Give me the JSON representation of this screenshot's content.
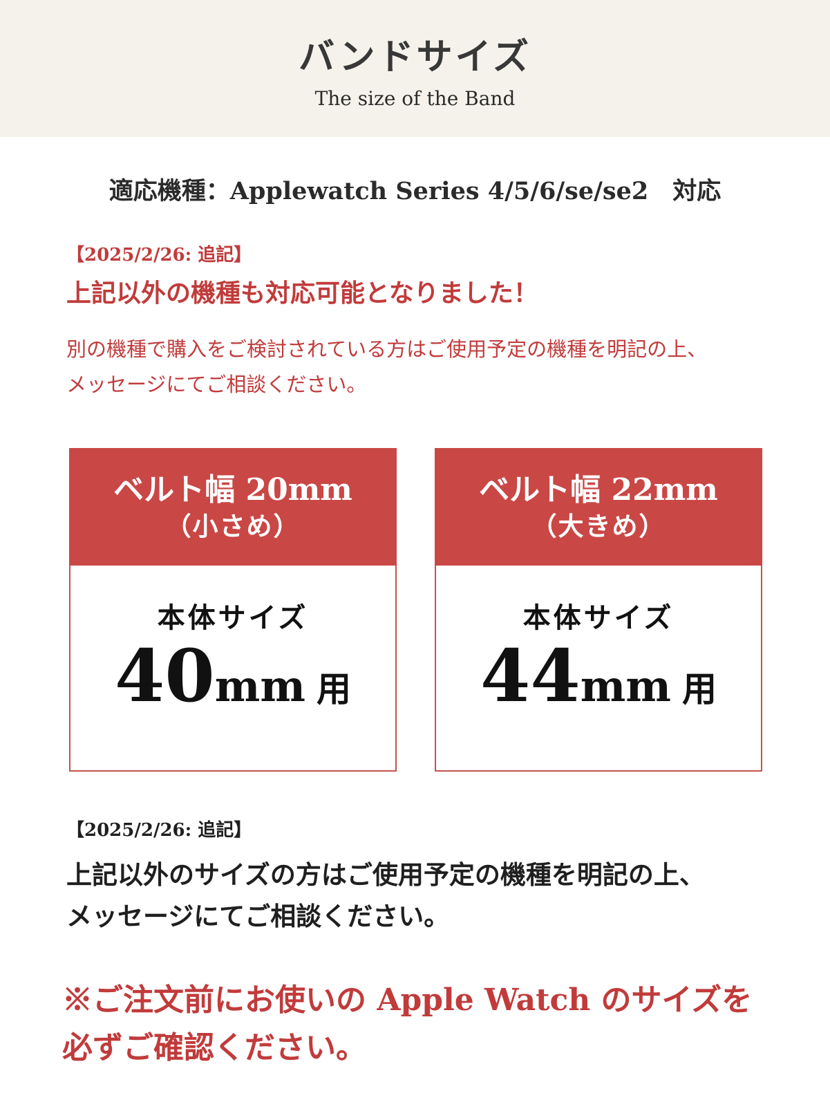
{
  "colors": {
    "header_bg": "#f4f2ea",
    "card_header_bg": "#c94745",
    "card_border": "#c5524e",
    "accent_red_text": "#c13b3b",
    "body_text": "#1f1f1f",
    "page_bg": "#ffffff"
  },
  "header": {
    "title": "バンドサイズ",
    "subtitle": "The size of the Band"
  },
  "compatibility": {
    "line": "適応機種：Applewatch Series 4/5/6/se/se2　対応"
  },
  "notice_top": {
    "date_label": "【2025/2/26: 追記】",
    "headline": "上記以外の機種も対応可能となりました！",
    "body_line1": "別の機種で購入をご検討されている方はご使用予定の機種を明記の上、",
    "body_line2": "メッセージにてご相談ください。"
  },
  "size_cards": [
    {
      "band_width_label": "ベルト幅 20mm",
      "fit_label": "（小さめ）",
      "body_label": "本体サイズ",
      "case_size_number": "40",
      "case_size_unit": "mm",
      "case_size_suffix": "用"
    },
    {
      "band_width_label": "ベルト幅 22mm",
      "fit_label": "（大きめ）",
      "body_label": "本体サイズ",
      "case_size_number": "44",
      "case_size_unit": "mm",
      "case_size_suffix": "用"
    }
  ],
  "notice_bottom": {
    "date_label": "【2025/2/26: 追記】",
    "body_line1": "上記以外のサイズの方はご使用予定の機種を明記の上、",
    "body_line2": "メッセージにてご相談ください。"
  },
  "warning": {
    "line1": "※ご注文前にお使いの Apple Watch のサイズを",
    "line2": "必ずご確認ください。"
  }
}
